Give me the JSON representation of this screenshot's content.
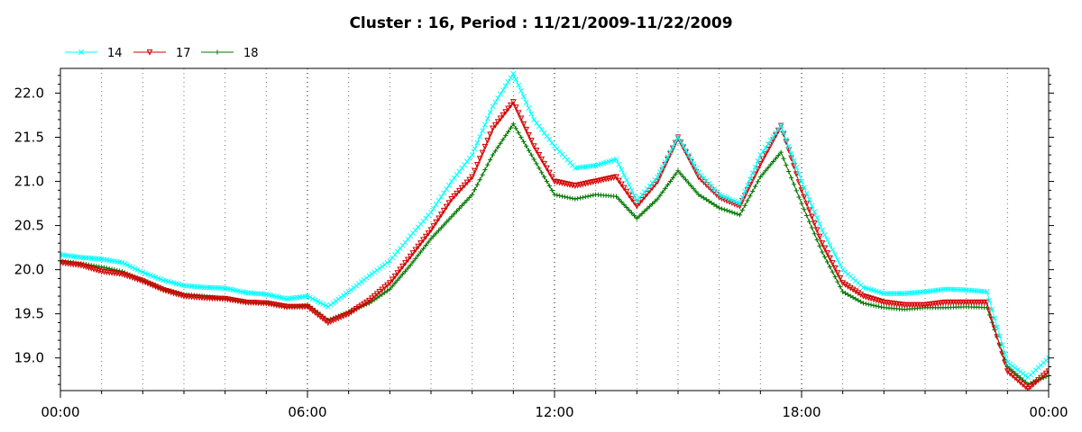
{
  "chart_data": {
    "type": "line",
    "title": "Cluster : 16, Period : 11/21/2009-11/22/2009",
    "xlabel": "",
    "ylabel": "",
    "x_ticks": [
      "00:00",
      "06:00",
      "12:00",
      "18:00",
      "00:00"
    ],
    "y_ticks": [
      "19.0",
      "19.5",
      "20.0",
      "20.5",
      "21.0",
      "21.5",
      "22.0"
    ],
    "xlim": [
      0,
      24
    ],
    "ylim": [
      18.63,
      22.28
    ],
    "grid": true,
    "legend_position": "top-left",
    "x": [
      0,
      0.5,
      1,
      1.5,
      2,
      2.5,
      3,
      3.5,
      4,
      4.5,
      5,
      5.5,
      6,
      6.5,
      7,
      7.5,
      8,
      8.5,
      9,
      9.5,
      10,
      10.5,
      11,
      11.5,
      12,
      12.5,
      13,
      13.5,
      14,
      14.5,
      15,
      15.5,
      16,
      16.5,
      17,
      17.5,
      18,
      18.5,
      19,
      19.5,
      20,
      20.5,
      21,
      21.5,
      22,
      22.5,
      23,
      23.5,
      24
    ],
    "series": [
      {
        "name": "14",
        "color": "#00ffff",
        "marker": "x",
        "values": [
          20.17,
          20.14,
          20.12,
          20.08,
          19.97,
          19.88,
          19.82,
          19.8,
          19.79,
          19.74,
          19.72,
          19.67,
          19.7,
          19.58,
          19.75,
          19.93,
          20.1,
          20.38,
          20.65,
          21.0,
          21.3,
          21.85,
          22.22,
          21.7,
          21.4,
          21.15,
          21.18,
          21.25,
          20.78,
          21.05,
          21.5,
          21.1,
          20.85,
          20.75,
          21.3,
          21.63,
          21.0,
          20.45,
          20.0,
          19.8,
          19.73,
          19.73,
          19.75,
          19.78,
          19.77,
          19.75,
          18.95,
          18.78,
          19.0
        ]
      },
      {
        "name": "17",
        "color": "#d40000",
        "marker": "triangle-down",
        "values": [
          20.08,
          20.05,
          19.98,
          19.95,
          19.87,
          19.77,
          19.7,
          19.68,
          19.67,
          19.63,
          19.62,
          19.58,
          19.58,
          19.4,
          19.5,
          19.65,
          19.85,
          20.15,
          20.45,
          20.8,
          21.05,
          21.6,
          21.9,
          21.4,
          21.0,
          20.95,
          21.0,
          21.05,
          20.72,
          21.0,
          21.5,
          21.05,
          20.82,
          20.72,
          21.2,
          21.63,
          20.9,
          20.3,
          19.85,
          19.7,
          19.63,
          19.6,
          19.6,
          19.63,
          19.63,
          19.63,
          18.85,
          18.65,
          18.85
        ]
      },
      {
        "name": "18",
        "color": "#007800",
        "marker": "plus",
        "values": [
          20.1,
          20.07,
          20.03,
          19.98,
          19.88,
          19.78,
          19.72,
          19.7,
          19.67,
          19.63,
          19.62,
          19.57,
          19.6,
          19.43,
          19.52,
          19.62,
          19.78,
          20.05,
          20.35,
          20.6,
          20.85,
          21.3,
          21.65,
          21.25,
          20.85,
          20.8,
          20.85,
          20.83,
          20.58,
          20.8,
          21.12,
          20.85,
          20.7,
          20.62,
          21.05,
          21.33,
          20.75,
          20.2,
          19.75,
          19.62,
          19.57,
          19.55,
          19.57,
          19.57,
          19.58,
          19.57,
          18.9,
          18.7,
          18.8
        ]
      }
    ]
  }
}
